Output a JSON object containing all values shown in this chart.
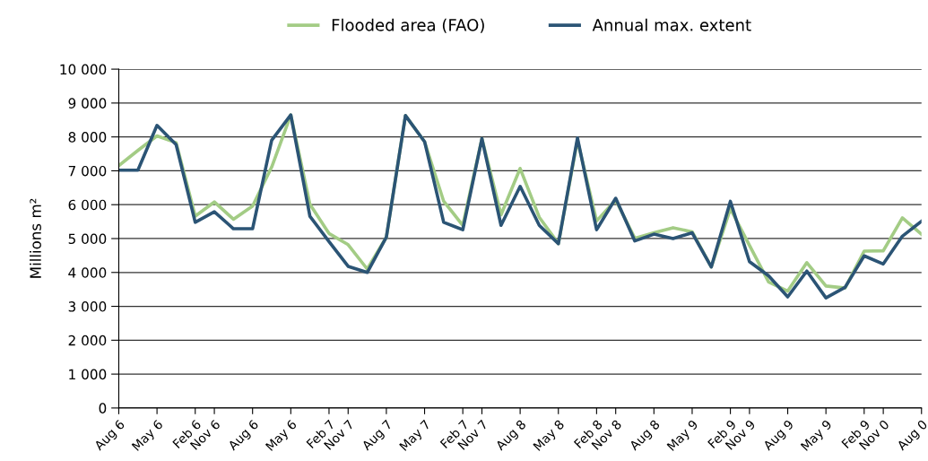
{
  "chart_data": {
    "type": "line",
    "ylabel": "Millions m²",
    "categories": [
      "Aug 6",
      null,
      "May 6",
      null,
      "Feb 6",
      "Nov 6",
      null,
      "Aug 6",
      null,
      "May 6",
      null,
      "Feb 7",
      "Nov 7",
      null,
      "Aug 7",
      null,
      "May 7",
      null,
      "Feb 7",
      "Nov 7",
      null,
      "Aug 8",
      null,
      "May 8",
      null,
      "Feb 8",
      "Nov 8",
      null,
      "Aug 8",
      null,
      "May 9",
      null,
      "Feb 9",
      "Nov 9",
      null,
      "Aug 9",
      null,
      "May 9",
      null,
      "Feb 9",
      "Nov 0",
      null,
      "Aug 0"
    ],
    "ylim": [
      0,
      10000
    ],
    "yticks": [
      0,
      {
        "value": 1000,
        "label": "1 000"
      },
      {
        "value": 2000,
        "label": "2 000"
      },
      {
        "value": 3000,
        "label": "3 000"
      },
      {
        "value": 4000,
        "label": "4 000"
      },
      {
        "value": 5000,
        "label": "5 000"
      },
      {
        "value": 6000,
        "label": "6 000"
      },
      {
        "value": 7000,
        "label": "7 000"
      },
      {
        "value": 8000,
        "label": "8 000"
      },
      {
        "value": 9000,
        "label": "9 000"
      },
      {
        "value": 10000,
        "label": "10 000"
      }
    ],
    "grid": "y",
    "legend": "top",
    "marker": "none",
    "line_style": "solid",
    "series": [
      {
        "name": "Flooded area (FAO)",
        "color": "#a3cc85",
        "values": [
          7150,
          7600,
          8030,
          7830,
          5660,
          6080,
          5570,
          5960,
          7110,
          8650,
          6010,
          5150,
          4820,
          4100,
          5040,
          8630,
          7860,
          6100,
          5390,
          7950,
          5700,
          7070,
          5630,
          4850,
          7900,
          5520,
          6140,
          5010,
          5170,
          5320,
          5200,
          4160,
          5880,
          4800,
          3720,
          3450,
          4290,
          3600,
          3540,
          4630,
          4640,
          5610,
          5130
        ]
      },
      {
        "name": "Annual max. extent",
        "color": "#2b5475",
        "values": [
          7020,
          7020,
          8340,
          7770,
          5480,
          5790,
          5290,
          5290,
          7900,
          8650,
          5660,
          4910,
          4180,
          4000,
          5040,
          8630,
          7860,
          5480,
          5260,
          7950,
          5390,
          6540,
          5390,
          4850,
          7970,
          5260,
          6190,
          4930,
          5130,
          5000,
          5170,
          4160,
          6100,
          4320,
          3900,
          3280,
          4040,
          3250,
          3560,
          4490,
          4250,
          5070,
          5510
        ]
      }
    ]
  }
}
